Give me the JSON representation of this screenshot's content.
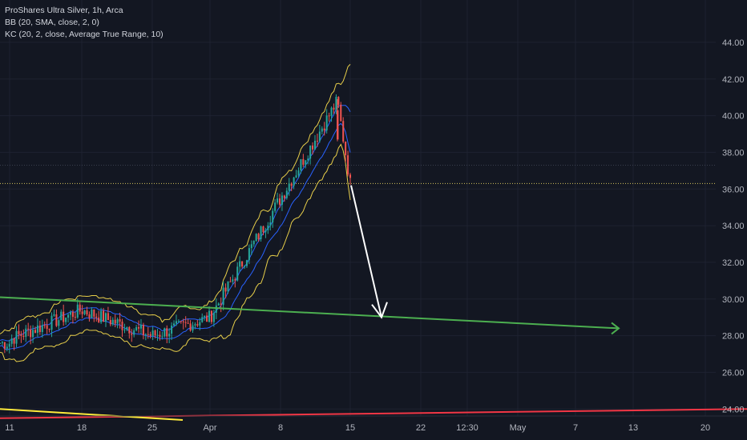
{
  "legend": {
    "title": "ProShares Ultra Silver, 1h, Arca",
    "bb": "BB (20, SMA, close, 2, 0)",
    "kc": "KC (20, 2, close, Average True Range, 10)"
  },
  "colors": {
    "background": "#131722",
    "grid": "#1e2230",
    "candle_up": "#26a69a",
    "candle_down": "#ef5350",
    "bollinger": "#e8cf4a",
    "keltner": "#2962ff",
    "support_line": "#4caf50",
    "lower_line": "#f23645",
    "old_trend_line": "#ffeb3b",
    "arrow": "#ffffff",
    "axis_text": "#b2b5be"
  },
  "chart_data": {
    "type": "candlestick",
    "symbol": "ProShares Ultra Silver",
    "interval": "1h",
    "exchange": "Arca",
    "indicators": [
      "BB (20, SMA, close, 2, 0)",
      "KC (20, 2, close, Average True Range, 10)"
    ],
    "y_axis": {
      "ticks": [
        "24.00",
        "26.00",
        "28.00",
        "30.00",
        "32.00",
        "34.00",
        "36.00",
        "38.00",
        "40.00",
        "42.00",
        "44.00"
      ],
      "range": [
        23.4,
        45.0
      ]
    },
    "x_axis": {
      "ticks": [
        "11",
        "18",
        "25",
        "Apr",
        "8",
        "15",
        "22",
        "12:30",
        "May",
        "7",
        "13",
        "20"
      ]
    },
    "last_price_level": 36.3,
    "price_path": [
      {
        "label": "11",
        "price": 27.8
      },
      {
        "label": "18",
        "price": 29.4
      },
      {
        "label": "25",
        "price": 28.0
      },
      {
        "label": "Apr",
        "price": 29.0
      },
      {
        "label": "8",
        "price": 35.5
      },
      {
        "label": "",
        "price": 40.8
      },
      {
        "label": "15",
        "price": 36.3
      }
    ],
    "drawings": [
      {
        "name": "projection-arrow",
        "from": {
          "x": "15",
          "price": 36.2
        },
        "to": {
          "x": "22",
          "price": 29.0
        }
      },
      {
        "name": "green-support-line",
        "from": {
          "x": "start",
          "price": 30.1
        },
        "to": {
          "x": "13",
          "price": 28.4
        }
      },
      {
        "name": "red-horizontal-line",
        "from": {
          "x": "start",
          "price": 23.5
        },
        "to": {
          "x": "end",
          "price": 24.0
        }
      },
      {
        "name": "yellow-trend-line",
        "from": {
          "x": "start",
          "price": 24.0
        },
        "to": {
          "x": "25",
          "price": 23.4
        }
      }
    ]
  }
}
